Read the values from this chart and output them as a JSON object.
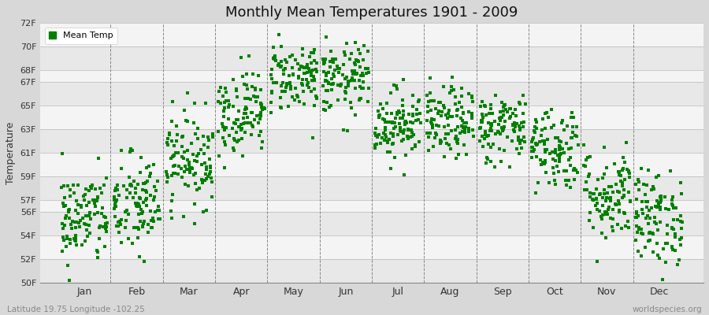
{
  "title": "Monthly Mean Temperatures 1901 - 2009",
  "ylabel": "Temperature",
  "xlabel_bottom_left": "Latitude 19.75 Longitude -102.25",
  "xlabel_bottom_right": "worldspecies.org",
  "legend_label": "Mean Temp",
  "dot_color": "#008000",
  "background_color": "#d8d8d8",
  "plot_bg_color": "#ffffff",
  "band_colors": [
    "#e8e8e8",
    "#f4f4f4"
  ],
  "ylim": [
    50,
    72
  ],
  "ytick_labels": [
    "50F",
    "52F",
    "54F",
    "56F",
    "57F",
    "59F",
    "61F",
    "63F",
    "65F",
    "67F",
    "68F",
    "70F",
    "72F"
  ],
  "ytick_values": [
    50,
    52,
    54,
    56,
    57,
    59,
    61,
    63,
    65,
    67,
    68,
    70,
    72
  ],
  "month_names": [
    "Jan",
    "Feb",
    "Mar",
    "Apr",
    "May",
    "Jun",
    "Jul",
    "Aug",
    "Sep",
    "Oct",
    "Nov",
    "Dec"
  ],
  "month_centers": [
    0.5,
    1.5,
    2.5,
    3.5,
    4.5,
    5.5,
    6.5,
    7.5,
    8.5,
    9.5,
    10.5,
    11.5
  ],
  "month_boundaries": [
    0,
    1,
    2,
    3,
    4,
    5,
    6,
    7,
    8,
    9,
    10,
    11,
    12
  ],
  "xlim": [
    -0.35,
    12.35
  ],
  "n_years": 109,
  "mean_temps_F": [
    55.5,
    56.5,
    60.5,
    64.5,
    67.5,
    67.2,
    63.5,
    63.5,
    63.2,
    61.5,
    57.5,
    55.5
  ],
  "spread": [
    2.0,
    2.2,
    2.0,
    1.8,
    1.5,
    1.5,
    1.5,
    1.5,
    1.5,
    1.8,
    2.0,
    2.0
  ]
}
